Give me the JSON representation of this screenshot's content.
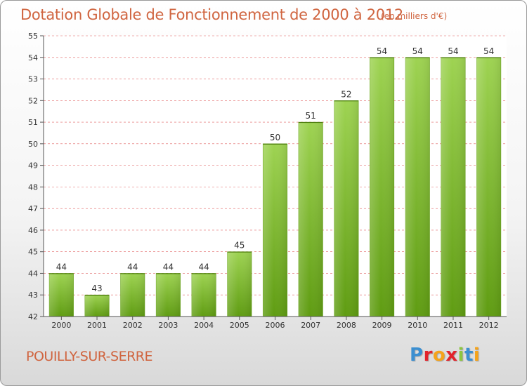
{
  "header": {
    "title": "Dotation Globale de Fonctionnement de 2000 à 2012",
    "unit_note": "(en milliers d'€)"
  },
  "footer": {
    "commune": "POUILLY-SUR-SERRE",
    "brand": "Proxiti"
  },
  "colors": {
    "title": "#d06540",
    "bar_top": "#9ed352",
    "bar_bottom": "#5f9c12",
    "grid": "#e06060",
    "brand_blue": "#3b8fd1",
    "brand_red": "#e2232b",
    "brand_orange": "#f5a31a",
    "brand_green": "#8cc63f"
  },
  "chart_data": {
    "type": "bar",
    "title": "Dotation Globale de Fonctionnement de 2000 à 2012",
    "subtitle": "(en milliers d'€)",
    "xlabel": "",
    "ylabel": "",
    "categories": [
      "2000",
      "2001",
      "2002",
      "2003",
      "2004",
      "2005",
      "2006",
      "2007",
      "2008",
      "2009",
      "2010",
      "2011",
      "2012"
    ],
    "values": [
      44,
      43,
      44,
      44,
      44,
      45,
      50,
      51,
      52,
      54,
      54,
      54,
      54
    ],
    "ylim": [
      42,
      55
    ],
    "yticks": [
      42,
      43,
      44,
      45,
      46,
      47,
      48,
      49,
      50,
      51,
      52,
      53,
      54,
      55
    ],
    "grid": true,
    "grid_style": "dashed-horizontal",
    "data_labels": true,
    "legend": "none"
  }
}
